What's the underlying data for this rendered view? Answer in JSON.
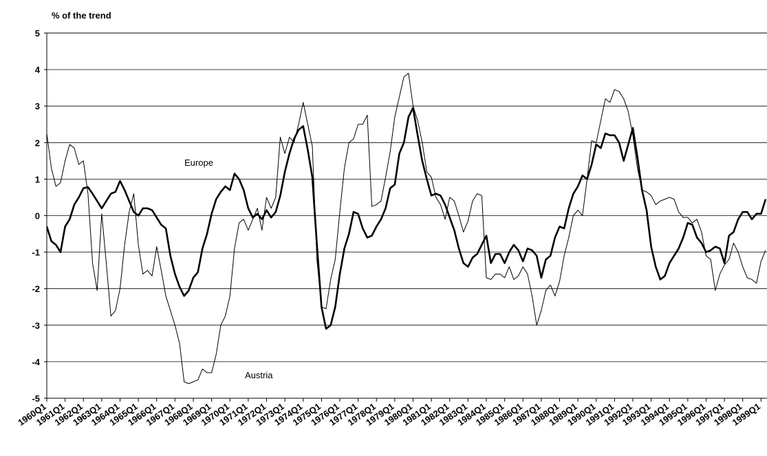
{
  "chart_data": {
    "type": "line",
    "ylabel": "% of the  trend",
    "categories": [
      "1960Q1",
      null,
      null,
      null,
      "1961Q1",
      null,
      null,
      null,
      "1962Q1",
      null,
      null,
      null,
      "1963Q1",
      null,
      null,
      null,
      "1964Q1",
      null,
      null,
      null,
      "1965Q1",
      null,
      null,
      null,
      "1966Q1",
      null,
      null,
      null,
      "1967Q1",
      null,
      null,
      null,
      "1968Q1",
      null,
      null,
      null,
      "1969Q1",
      null,
      null,
      null,
      "1970Q1",
      null,
      null,
      null,
      "1971Q1",
      null,
      null,
      null,
      "1972Q1",
      null,
      null,
      null,
      "1973Q1",
      null,
      null,
      null,
      "1974Q1",
      null,
      null,
      null,
      "1975Q1",
      null,
      null,
      null,
      "1976Q1",
      null,
      null,
      null,
      "1977Q1",
      null,
      null,
      null,
      "1978Q1",
      null,
      null,
      null,
      "1979Q1",
      null,
      null,
      null,
      "1980Q1",
      null,
      null,
      null,
      "1981Q1",
      null,
      null,
      null,
      "1982Q1",
      null,
      null,
      null,
      "1983Q1",
      null,
      null,
      null,
      "1984Q1",
      null,
      null,
      null,
      "1985Q1",
      null,
      null,
      null,
      "1986Q1",
      null,
      null,
      null,
      "1987Q1",
      null,
      null,
      null,
      "1988Q1",
      null,
      null,
      null,
      "1989Q1",
      null,
      null,
      null,
      "1990Q1",
      null,
      null,
      null,
      "1991Q1",
      null,
      null,
      null,
      "1992Q1",
      null,
      null,
      null,
      "1993Q1",
      null,
      null,
      null,
      "1994Q1",
      null,
      null,
      null,
      "1995Q1",
      null,
      null,
      null,
      "1996Q1",
      null,
      null,
      null,
      "1997Q1",
      null,
      null,
      null,
      "1998Q1",
      null,
      null,
      null,
      "1999Q1",
      null
    ],
    "series": [
      {
        "name": "Europe",
        "color": "#000000",
        "values": [
          -0.3,
          -0.7,
          -0.8,
          -1.0,
          -0.3,
          -0.1,
          0.3,
          0.5,
          0.75,
          0.78,
          0.6,
          0.4,
          0.2,
          0.4,
          0.6,
          0.65,
          0.95,
          0.7,
          0.4,
          0.1,
          0.0,
          0.2,
          0.2,
          0.15,
          -0.05,
          -0.25,
          -0.35,
          -1.1,
          -1.6,
          -1.95,
          -2.2,
          -2.05,
          -1.7,
          -1.55,
          -0.9,
          -0.5,
          0.05,
          0.45,
          0.65,
          0.8,
          0.7,
          1.15,
          1.0,
          0.7,
          0.2,
          -0.05,
          0.05,
          -0.1,
          0.15,
          -0.05,
          0.1,
          0.55,
          1.2,
          1.7,
          2.1,
          2.35,
          2.45,
          1.8,
          1.05,
          -0.8,
          -2.5,
          -3.1,
          -3.0,
          -2.5,
          -1.6,
          -0.9,
          -0.5,
          0.1,
          0.05,
          -0.35,
          -0.6,
          -0.55,
          -0.3,
          -0.1,
          0.2,
          0.75,
          0.85,
          1.7,
          2.0,
          2.7,
          2.95,
          2.2,
          1.5,
          1.0,
          0.55,
          0.6,
          0.55,
          0.3,
          -0.05,
          -0.4,
          -0.9,
          -1.3,
          -1.4,
          -1.15,
          -1.05,
          -0.8,
          -0.55,
          -1.3,
          -1.05,
          -1.05,
          -1.3,
          -1.0,
          -0.8,
          -0.95,
          -1.25,
          -0.9,
          -0.95,
          -1.1,
          -1.7,
          -1.2,
          -1.1,
          -0.6,
          -0.3,
          -0.35,
          0.2,
          0.6,
          0.8,
          1.1,
          1.0,
          1.4,
          1.95,
          1.85,
          2.25,
          2.2,
          2.2,
          2.0,
          1.5,
          1.95,
          2.4,
          1.6,
          0.7,
          0.15,
          -0.85,
          -1.4,
          -1.75,
          -1.65,
          -1.3,
          -1.1,
          -0.9,
          -0.6,
          -0.2,
          -0.25,
          -0.6,
          -0.75,
          -1.0,
          -0.95,
          -0.85,
          -0.9,
          -1.3,
          -0.55,
          -0.45,
          -0.1,
          0.1,
          0.1,
          -0.1,
          0.05,
          0.05,
          0.45
        ]
      },
      {
        "name": "Austria",
        "color": "#000000",
        "values": [
          2.25,
          1.3,
          0.8,
          0.9,
          1.5,
          1.95,
          1.85,
          1.4,
          1.5,
          0.6,
          -1.3,
          -2.05,
          0.05,
          -1.3,
          -2.75,
          -2.6,
          -2.0,
          -0.8,
          0.1,
          0.6,
          -0.8,
          -1.6,
          -1.5,
          -1.65,
          -0.85,
          -1.5,
          -2.2,
          -2.6,
          -3.0,
          -3.5,
          -4.55,
          -4.6,
          -4.55,
          -4.5,
          -4.2,
          -4.3,
          -4.3,
          -3.8,
          -3.0,
          -2.75,
          -2.2,
          -0.9,
          -0.2,
          -0.1,
          -0.4,
          -0.1,
          0.2,
          -0.4,
          0.5,
          0.2,
          0.5,
          2.15,
          1.7,
          2.15,
          2.0,
          2.5,
          3.1,
          2.5,
          1.9,
          -1.2,
          -2.5,
          -2.55,
          -1.75,
          -1.2,
          0.1,
          1.3,
          2.0,
          2.1,
          2.5,
          2.5,
          2.75,
          0.25,
          0.3,
          0.4,
          1.05,
          1.75,
          2.7,
          3.25,
          3.8,
          3.9,
          3.0,
          2.6,
          2.0,
          1.2,
          1.05,
          0.5,
          0.3,
          -0.1,
          0.5,
          0.4,
          0.0,
          -0.45,
          -0.15,
          0.4,
          0.6,
          0.55,
          -1.7,
          -1.75,
          -1.6,
          -1.6,
          -1.7,
          -1.4,
          -1.75,
          -1.65,
          -1.4,
          -1.6,
          -2.2,
          -3.0,
          -2.6,
          -2.05,
          -1.9,
          -2.2,
          -1.8,
          -1.1,
          -0.6,
          0.0,
          0.15,
          0.0,
          1.0,
          2.05,
          2.0,
          2.6,
          3.2,
          3.1,
          3.45,
          3.4,
          3.2,
          2.85,
          2.2,
          1.3,
          0.7,
          0.65,
          0.55,
          0.3,
          0.4,
          0.45,
          0.5,
          0.45,
          0.1,
          -0.05,
          -0.05,
          -0.2,
          -0.1,
          -0.45,
          -1.1,
          -1.2,
          -2.05,
          -1.6,
          -1.35,
          -1.2,
          -0.75,
          -1.0,
          -1.4,
          -1.7,
          -1.75,
          -1.85,
          -1.25,
          -0.95
        ]
      }
    ],
    "ylim": [
      -5,
      5
    ],
    "yticks": [
      5,
      4,
      3,
      2,
      1,
      0,
      -1,
      -2,
      -3,
      -4,
      -5
    ],
    "grid": true
  }
}
